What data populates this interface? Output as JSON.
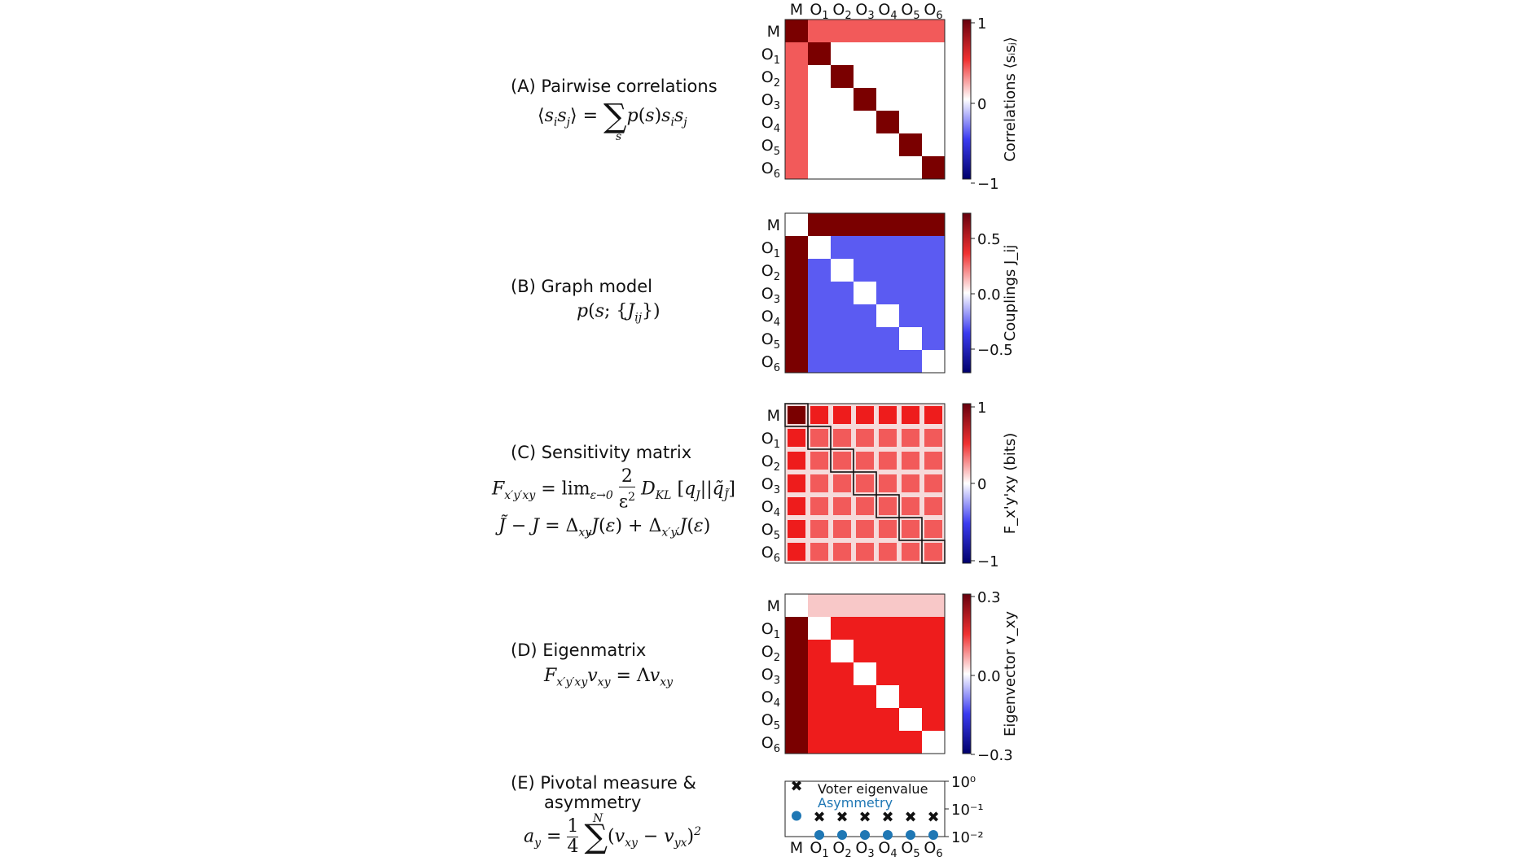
{
  "labels": [
    "M",
    "O1",
    "O2",
    "O3",
    "O4",
    "O5",
    "O6"
  ],
  "panels": {
    "A": {
      "title": "(A) Pairwise correlations",
      "equation": "⟨s_i s_j⟩ = Σ_s p(s) s_i s_j",
      "colorbar": {
        "label": "Correlations ⟨sᵢsⱼ⟩",
        "ticks": [
          "1",
          "0",
          "−1"
        ],
        "range": [
          -1,
          1
        ]
      }
    },
    "B": {
      "title": "(B) Graph model",
      "equation": "p(s;{J_ij})",
      "colorbar": {
        "label": "Couplings J_ij",
        "ticks": [
          "0.5",
          "0.0",
          "−0.5"
        ],
        "range": [
          -0.75,
          0.75
        ]
      }
    },
    "C": {
      "title": "(C) Sensitivity matrix",
      "equation1": "F_x'y'xy = lim_{ε→0} 2/ε² D_KL [q_J||q̃_J̃]",
      "equation2": "J̃ − J = Δ_xy J(ε) + Δ_x'y' J(ε)",
      "colorbar": {
        "label": "F_x'y'xy (bits)",
        "ticks": [
          "1",
          "0",
          "−1"
        ],
        "range": [
          -1,
          1
        ]
      }
    },
    "D": {
      "title": "(D) Eigenmatrix",
      "equation": "F_x'y'xy v_xy = Λ v_xy",
      "colorbar": {
        "label": "Eigenvector v_xy",
        "ticks": [
          "0.3",
          "0.0",
          "−0.3"
        ],
        "range": [
          -0.3,
          0.3
        ]
      }
    },
    "E": {
      "title_line1": "(E) Pivotal measure &",
      "title_line2": "asymmetry",
      "equation": "a_y = 1/4 Σ_{x=1}^{N} (v_xy − v_yx)²",
      "legend": {
        "voter": "Voter eigenvalue",
        "asymmetry": "Asymmetry"
      },
      "yticks": [
        "10⁰",
        "10⁻¹",
        "10⁻²"
      ]
    }
  },
  "colors": {
    "dark_red": "#7a0000",
    "red": "#ee1c1c",
    "light_red": "#f25a5a",
    "pink": "#f8c8c8",
    "blue": "#5b5bf2",
    "asym": "#1f77b4"
  }
}
